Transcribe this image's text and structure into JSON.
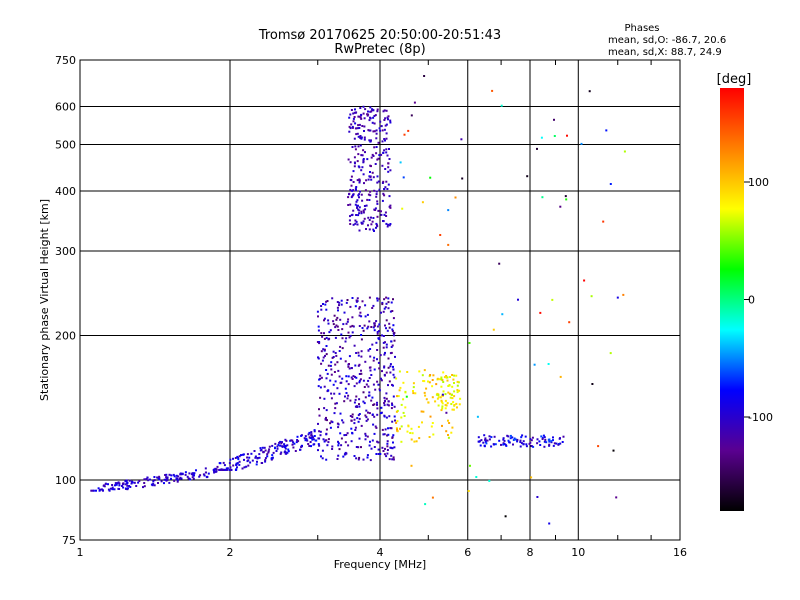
{
  "chart_data": {
    "type": "scatter",
    "title": "Tromsø 20170625 20:50:00-20:51:43",
    "subtitle": "RwPretec (8p)",
    "xlabel": "Frequency [MHz]",
    "ylabel": "Stationary phase Virtual Height [km]",
    "x_scale": "log",
    "y_scale": "log",
    "xlim": [
      1,
      16
    ],
    "ylim": [
      75,
      750
    ],
    "x_ticks": [
      "1",
      "2",
      "4",
      "6",
      "8",
      "10",
      "16"
    ],
    "x_tick_values": [
      1,
      2,
      4,
      6,
      8,
      10,
      16
    ],
    "y_ticks": [
      "75",
      "100",
      "200",
      "300",
      "400",
      "500",
      "600",
      "750"
    ],
    "y_tick_values": [
      75,
      100,
      200,
      300,
      400,
      500,
      600,
      750
    ],
    "grid": true,
    "phase_box": {
      "title": "Phases",
      "line_o": "mean, sd,O: -86.7, 20.6",
      "line_x": "mean, sd,X:  88.7, 24.9"
    },
    "colorbar": {
      "label": "[deg]",
      "range": [
        -180,
        180
      ],
      "ticks": [
        "100",
        "0",
        "-100"
      ],
      "tick_values": [
        100,
        0,
        -100
      ],
      "colors": [
        "#000000",
        "#5a0090",
        "#0000ff",
        "#00ffff",
        "#00ff00",
        "#ffff00",
        "#ff8000",
        "#ff0000"
      ]
    },
    "clusters": [
      {
        "name": "o-trace-low",
        "x_range": [
          1.05,
          1.9
        ],
        "y_range": [
          95,
          108
        ],
        "phase": [
          -120,
          -80
        ],
        "count": 160
      },
      {
        "name": "o-trace-rise",
        "x_range": [
          1.9,
          3.0
        ],
        "y_range": [
          105,
          130
        ],
        "phase": [
          -120,
          -70
        ],
        "count": 180
      },
      {
        "name": "o-trace-cusp",
        "x_range": [
          3.0,
          4.3
        ],
        "y_range": [
          110,
          240
        ],
        "phase": [
          -140,
          -80
        ],
        "count": 520
      },
      {
        "name": "f-layer",
        "x_range": [
          3.45,
          4.2
        ],
        "y_range": [
          330,
          600
        ],
        "phase": [
          -130,
          -90
        ],
        "count": 300
      },
      {
        "name": "x-trace",
        "x_range": [
          4.3,
          5.6
        ],
        "y_range": [
          120,
          170
        ],
        "phase": [
          60,
          120
        ],
        "count": 90
      },
      {
        "name": "x-trace-high",
        "x_range": [
          5.2,
          5.8
        ],
        "y_range": [
          140,
          165
        ],
        "phase": [
          60,
          100
        ],
        "count": 60
      },
      {
        "name": "band-120",
        "x_range": [
          6.3,
          9.4
        ],
        "y_range": [
          117,
          124
        ],
        "phase": [
          -120,
          -60
        ],
        "count": 100
      },
      {
        "name": "scatter-high",
        "x_range": [
          4.2,
          13.0
        ],
        "y_range": [
          80,
          700
        ],
        "phase": [
          -180,
          180
        ],
        "count": 70
      }
    ]
  }
}
